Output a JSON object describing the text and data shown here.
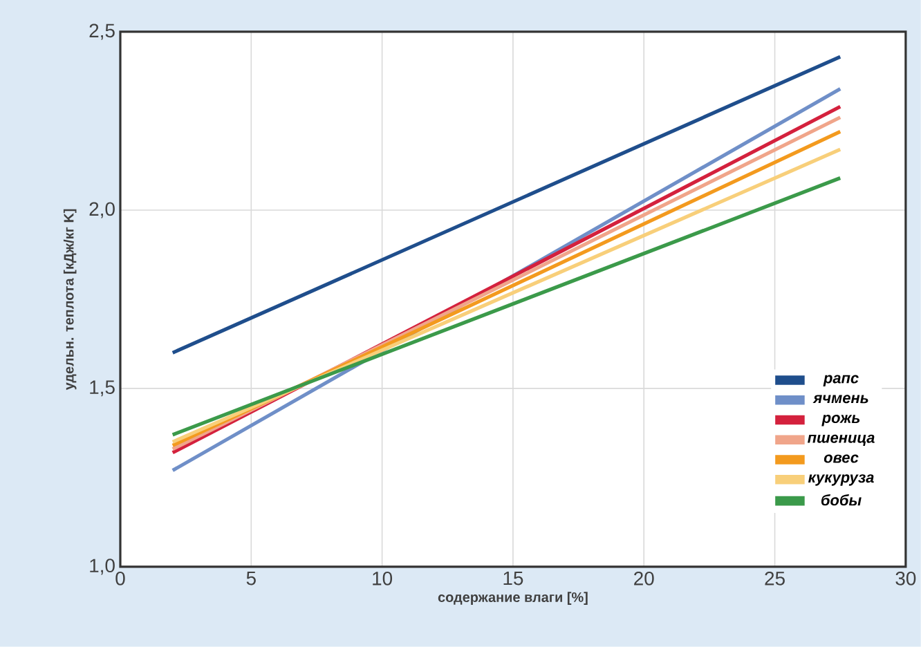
{
  "chart_data": {
    "type": "line",
    "xlabel": "содержание влаги [%]",
    "ylabel": "удельн. теплота [кДж/кг K]",
    "x": [
      2,
      27.5
    ],
    "xlim": [
      0,
      30
    ],
    "xticks": [
      0,
      5,
      10,
      15,
      20,
      25,
      30
    ],
    "ylim": [
      1.0,
      2.5
    ],
    "yticks": [
      {
        "value": 1.0,
        "label": "1,0"
      },
      {
        "value": 1.5,
        "label": "1,5"
      },
      {
        "value": 2.0,
        "label": "2,0"
      },
      {
        "value": 2.5,
        "label": "2,5"
      }
    ],
    "grid": true,
    "legend": "right",
    "series": [
      {
        "name": "рапс",
        "color": "#1f4e8c",
        "values": [
          1.6,
          2.43
        ]
      },
      {
        "name": "ячмень",
        "color": "#6f8fc8",
        "values": [
          1.27,
          2.34
        ]
      },
      {
        "name": "рожь",
        "color": "#d4213d",
        "values": [
          1.32,
          2.29
        ]
      },
      {
        "name": "пшеница",
        "color": "#f0a58a",
        "values": [
          1.33,
          2.26
        ]
      },
      {
        "name": "овес",
        "color": "#f39a1e",
        "values": [
          1.34,
          2.22
        ]
      },
      {
        "name": "кукуруза",
        "color": "#f8cf7a",
        "values": [
          1.35,
          2.17
        ]
      },
      {
        "name": "бобы",
        "color": "#3b9a4a",
        "values": [
          1.37,
          2.09
        ]
      }
    ]
  }
}
